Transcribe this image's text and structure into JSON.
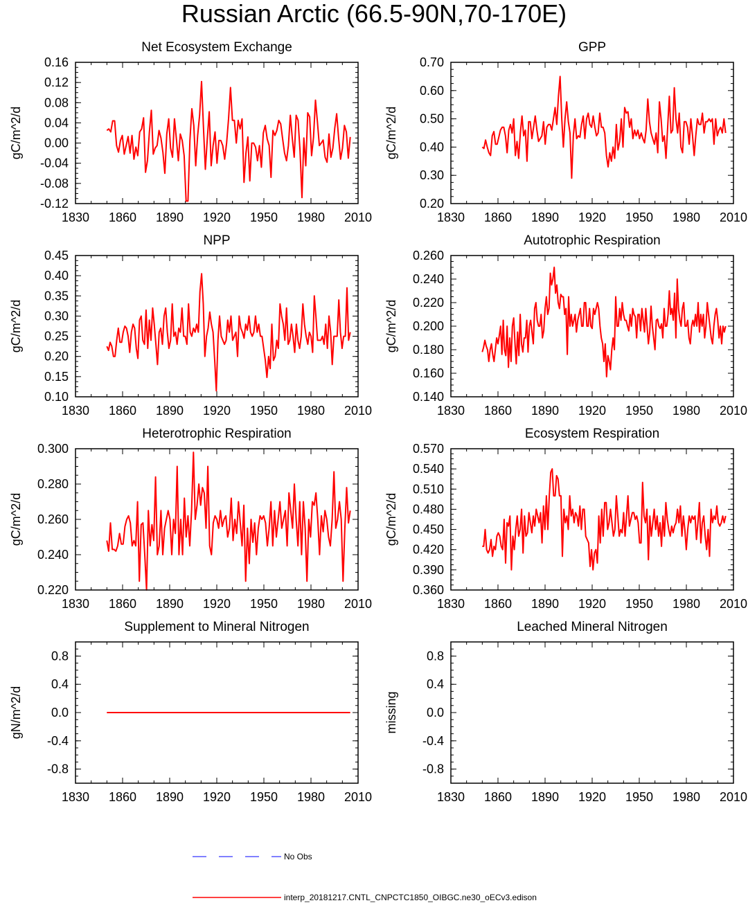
{
  "title": "Russian Arctic (66.5-90N,70-170E)",
  "legend": {
    "obs_label": "No Obs",
    "obs_color": "#0000ff",
    "model_label": "interp_20181217.CNTL_CNPCTC1850_OIBGC.ne30_oECv3.edison",
    "model_color": "#ff0000"
  },
  "chart_data": [
    {
      "type": "line",
      "title": "Net Ecosystem Exchange",
      "ylabel": "gC/m^2/d",
      "xlim": [
        1830,
        2010
      ],
      "xticks": [
        "1830",
        "1860",
        "1890",
        "1920",
        "1950",
        "1980",
        "2010"
      ],
      "ylim": [
        -0.12,
        0.16
      ],
      "yticks": [
        "-0.12",
        "-0.08",
        "-0.04",
        "0.00",
        "0.04",
        "0.08",
        "0.12",
        "0.16"
      ],
      "x_start": 1850,
      "values": [
        0.025,
        0.028,
        0.022,
        0.044,
        0.044,
        -0.005,
        -0.018,
        0.005,
        0.015,
        -0.022,
        -0.005,
        0.013,
        -0.02,
        0.015,
        -0.032,
        -0.008,
        -0.025,
        0.022,
        0.028,
        0.05,
        -0.058,
        -0.035,
        0.022,
        0.065,
        -0.022,
        -0.01,
        -0.005,
        0.025,
        0.01,
        -0.018,
        -0.06,
        0.018,
        0.048,
        -0.01,
        -0.028,
        0.048,
        0.008,
        -0.035,
        0.018,
        0.005,
        -0.025,
        -0.115,
        -0.115,
        0.005,
        0.068,
        0.035,
        -0.045,
        0.015,
        0.055,
        0.122,
        0.03,
        -0.052,
        0.008,
        0.062,
        -0.045,
        -0.005,
        0.022,
        -0.04,
        0.005,
        0.005,
        -0.005,
        -0.032,
        0.0,
        0.048,
        0.11,
        0.045,
        0.045,
        0.0,
        0.045,
        0.028,
        0.048,
        -0.078,
        -0.02,
        0.012,
        -0.075,
        0.0,
        0.0,
        -0.008,
        -0.035,
        -0.005,
        -0.048,
        0.02,
        0.035,
        0.008,
        -0.005,
        -0.068,
        0.025,
        0.015,
        0.025,
        0.045,
        0.038,
        0.008,
        -0.02,
        -0.035,
        -0.005,
        0.055,
        0.01,
        -0.028,
        0.055,
        0.045,
        -0.015,
        -0.108,
        0.01,
        -0.045,
        0.06,
        0.052,
        -0.025,
        0.012,
        0.085,
        0.042,
        -0.005,
        0.0,
        0.006,
        -0.028,
        -0.038,
        0.018,
        -0.028,
        -0.01,
        0.03,
        0.058,
        0.01,
        -0.032,
        -0.01,
        0.035,
        0.022,
        -0.03,
        0.012
      ]
    },
    {
      "type": "line",
      "title": "GPP",
      "ylabel": "gC/m^2/d",
      "xlim": [
        1830,
        2010
      ],
      "xticks": [
        "1830",
        "1860",
        "1890",
        "1920",
        "1950",
        "1980",
        "2010"
      ],
      "ylim": [
        0.2,
        0.7
      ],
      "yticks": [
        "0.20",
        "0.30",
        "0.40",
        "0.50",
        "0.60",
        "0.70"
      ],
      "x_start": 1850,
      "values": [
        0.4,
        0.395,
        0.425,
        0.4,
        0.38,
        0.37,
        0.44,
        0.455,
        0.41,
        0.41,
        0.435,
        0.46,
        0.47,
        0.47,
        0.44,
        0.38,
        0.46,
        0.48,
        0.45,
        0.5,
        0.37,
        0.42,
        0.36,
        0.45,
        0.51,
        0.44,
        0.46,
        0.35,
        0.49,
        0.49,
        0.43,
        0.47,
        0.51,
        0.46,
        0.42,
        0.43,
        0.44,
        0.49,
        0.41,
        0.47,
        0.48,
        0.48,
        0.46,
        0.5,
        0.54,
        0.48,
        0.58,
        0.65,
        0.5,
        0.4,
        0.5,
        0.56,
        0.49,
        0.45,
        0.29,
        0.44,
        0.5,
        0.43,
        0.44,
        0.435,
        0.48,
        0.51,
        0.43,
        0.5,
        0.52,
        0.48,
        0.47,
        0.51,
        0.47,
        0.44,
        0.45,
        0.52,
        0.47,
        0.47,
        0.45,
        0.37,
        0.33,
        0.38,
        0.35,
        0.4,
        0.36,
        0.48,
        0.39,
        0.42,
        0.5,
        0.4,
        0.54,
        0.52,
        0.525,
        0.47,
        0.5,
        0.43,
        0.46,
        0.44,
        0.46,
        0.43,
        0.45,
        0.43,
        0.415,
        0.46,
        0.57,
        0.49,
        0.45,
        0.43,
        0.41,
        0.45,
        0.38,
        0.56,
        0.5,
        0.42,
        0.44,
        0.36,
        0.47,
        0.58,
        0.45,
        0.46,
        0.61,
        0.5,
        0.45,
        0.52,
        0.4,
        0.38,
        0.49,
        0.49,
        0.47,
        0.41,
        0.5,
        0.44,
        0.37,
        0.44,
        0.5,
        0.48,
        0.48,
        0.52,
        0.45,
        0.49,
        0.49,
        0.5,
        0.49,
        0.5,
        0.41,
        0.5,
        0.44,
        0.46,
        0.47,
        0.45,
        0.5,
        0.45
      ]
    },
    {
      "type": "line",
      "title": "NPP",
      "ylabel": "gC/m^2/d",
      "xlim": [
        1830,
        2010
      ],
      "xticks": [
        "1830",
        "1860",
        "1890",
        "1920",
        "1950",
        "1980",
        "2010"
      ],
      "ylim": [
        0.1,
        0.45
      ],
      "yticks": [
        "0.10",
        "0.15",
        "0.20",
        "0.25",
        "0.30",
        "0.35",
        "0.40",
        "0.45"
      ],
      "x_start": 1850,
      "values": [
        0.225,
        0.215,
        0.235,
        0.225,
        0.2,
        0.2,
        0.24,
        0.27,
        0.235,
        0.235,
        0.26,
        0.275,
        0.27,
        0.25,
        0.21,
        0.26,
        0.28,
        0.27,
        0.22,
        0.195,
        0.29,
        0.3,
        0.24,
        0.23,
        0.315,
        0.22,
        0.29,
        0.24,
        0.32,
        0.28,
        0.23,
        0.18,
        0.26,
        0.27,
        0.23,
        0.3,
        0.32,
        0.26,
        0.22,
        0.24,
        0.33,
        0.25,
        0.26,
        0.23,
        0.27,
        0.26,
        0.32,
        0.25,
        0.25,
        0.23,
        0.33,
        0.26,
        0.25,
        0.27,
        0.26,
        0.28,
        0.26,
        0.36,
        0.405,
        0.33,
        0.2,
        0.25,
        0.27,
        0.31,
        0.28,
        0.26,
        0.19,
        0.115,
        0.24,
        0.3,
        0.25,
        0.24,
        0.23,
        0.24,
        0.29,
        0.26,
        0.3,
        0.24,
        0.25,
        0.26,
        0.2,
        0.3,
        0.27,
        0.26,
        0.245,
        0.28,
        0.265,
        0.3,
        0.26,
        0.25,
        0.26,
        0.3,
        0.26,
        0.28,
        0.25,
        0.25,
        0.22,
        0.19,
        0.148,
        0.2,
        0.17,
        0.28,
        0.19,
        0.2,
        0.24,
        0.22,
        0.33,
        0.3,
        0.28,
        0.24,
        0.32,
        0.23,
        0.24,
        0.28,
        0.25,
        0.21,
        0.28,
        0.24,
        0.22,
        0.25,
        0.33,
        0.28,
        0.25,
        0.23,
        0.26,
        0.25,
        0.21,
        0.35,
        0.3,
        0.24,
        0.24,
        0.24,
        0.25,
        0.23,
        0.28,
        0.22,
        0.3,
        0.26,
        0.18,
        0.25,
        0.25,
        0.25,
        0.34,
        0.26,
        0.22,
        0.25,
        0.25,
        0.37,
        0.24,
        0.26
      ]
    },
    {
      "type": "line",
      "title": "Autotrophic Respiration",
      "ylabel": "gC/m^2/d",
      "xlim": [
        1830,
        2010
      ],
      "xticks": [
        "1830",
        "1860",
        "1890",
        "1920",
        "1950",
        "1980",
        "2010"
      ],
      "ylim": [
        0.14,
        0.26
      ],
      "yticks": [
        "0.140",
        "0.160",
        "0.180",
        "0.200",
        "0.220",
        "0.240",
        "0.260"
      ],
      "x_start": 1850,
      "values": [
        0.178,
        0.182,
        0.188,
        0.183,
        0.18,
        0.17,
        0.18,
        0.185,
        0.176,
        0.17,
        0.18,
        0.19,
        0.185,
        0.192,
        0.2,
        0.176,
        0.205,
        0.18,
        0.175,
        0.2,
        0.165,
        0.19,
        0.17,
        0.2,
        0.207,
        0.185,
        0.168,
        0.195,
        0.175,
        0.21,
        0.185,
        0.178,
        0.19,
        0.19,
        0.205,
        0.178,
        0.2,
        0.205,
        0.195,
        0.185,
        0.215,
        0.22,
        0.205,
        0.2,
        0.2,
        0.21,
        0.19,
        0.196,
        0.215,
        0.225,
        0.21,
        0.215,
        0.245,
        0.235,
        0.24,
        0.25,
        0.228,
        0.235,
        0.22,
        0.215,
        0.227,
        0.225,
        0.225,
        0.21,
        0.215,
        0.176,
        0.225,
        0.2,
        0.21,
        0.2,
        0.205,
        0.21,
        0.195,
        0.205,
        0.21,
        0.215,
        0.2,
        0.2,
        0.22,
        0.22,
        0.2,
        0.2,
        0.215,
        0.2,
        0.198,
        0.215,
        0.21,
        0.215,
        0.22,
        0.215,
        0.2,
        0.19,
        0.185,
        0.17,
        0.185,
        0.157,
        0.175,
        0.17,
        0.163,
        0.18,
        0.19,
        0.18,
        0.225,
        0.2,
        0.2,
        0.215,
        0.205,
        0.22,
        0.21,
        0.205,
        0.205,
        0.2,
        0.196,
        0.21,
        0.2,
        0.215,
        0.21,
        0.208,
        0.19,
        0.21,
        0.21,
        0.196,
        0.215,
        0.205,
        0.195,
        0.215,
        0.2,
        0.185,
        0.195,
        0.217,
        0.2,
        0.19,
        0.18,
        0.205,
        0.206,
        0.2,
        0.198,
        0.202,
        0.19,
        0.215,
        0.2,
        0.2,
        0.21,
        0.23,
        0.21,
        0.215,
        0.205,
        0.228,
        0.19,
        0.24,
        0.215,
        0.205,
        0.2,
        0.215,
        0.22,
        0.2,
        0.2,
        0.205,
        0.19,
        0.185,
        0.2,
        0.205,
        0.2,
        0.21,
        0.2,
        0.22,
        0.195,
        0.21,
        0.2,
        0.21,
        0.19,
        0.2,
        0.22,
        0.21,
        0.2,
        0.19,
        0.185,
        0.2,
        0.21,
        0.215,
        0.205,
        0.19,
        0.2,
        0.185,
        0.2,
        0.195,
        0.2
      ]
    },
    {
      "type": "line",
      "title": "Heterotrophic Respiration",
      "ylabel": "gC/m^2/d",
      "xlim": [
        1830,
        2010
      ],
      "xticks": [
        "1830",
        "1860",
        "1890",
        "1920",
        "1950",
        "1980",
        "2010"
      ],
      "ylim": [
        0.22,
        0.3
      ],
      "yticks": [
        "0.220",
        "0.240",
        "0.260",
        "0.280",
        "0.300"
      ],
      "x_start": 1850,
      "values": [
        0.248,
        0.242,
        0.258,
        0.243,
        0.243,
        0.242,
        0.245,
        0.252,
        0.246,
        0.246,
        0.256,
        0.26,
        0.262,
        0.258,
        0.245,
        0.248,
        0.245,
        0.27,
        0.225,
        0.257,
        0.258,
        0.24,
        0.22,
        0.265,
        0.245,
        0.257,
        0.248,
        0.284,
        0.24,
        0.245,
        0.265,
        0.24,
        0.255,
        0.26,
        0.265,
        0.26,
        0.24,
        0.26,
        0.252,
        0.29,
        0.24,
        0.26,
        0.24,
        0.272,
        0.25,
        0.262,
        0.245,
        0.265,
        0.298,
        0.26,
        0.268,
        0.28,
        0.268,
        0.278,
        0.275,
        0.255,
        0.29,
        0.245,
        0.24,
        0.258,
        0.262,
        0.26,
        0.255,
        0.265,
        0.256,
        0.26,
        0.262,
        0.25,
        0.255,
        0.272,
        0.248,
        0.26,
        0.252,
        0.27,
        0.258,
        0.245,
        0.268,
        0.225,
        0.255,
        0.235,
        0.26,
        0.247,
        0.258,
        0.24,
        0.255,
        0.262,
        0.26,
        0.262,
        0.258,
        0.245,
        0.255,
        0.27,
        0.245,
        0.265,
        0.25,
        0.26,
        0.27,
        0.255,
        0.26,
        0.265,
        0.245,
        0.275,
        0.265,
        0.255,
        0.28,
        0.26,
        0.245,
        0.27,
        0.24,
        0.27,
        0.255,
        0.225,
        0.26,
        0.25,
        0.27,
        0.268,
        0.275,
        0.26,
        0.24,
        0.262,
        0.253,
        0.265,
        0.26,
        0.25,
        0.245,
        0.26,
        0.287,
        0.255,
        0.26,
        0.27,
        0.26,
        0.225,
        0.255,
        0.278,
        0.258,
        0.265
      ]
    },
    {
      "type": "line",
      "title": "Ecosystem Respiration",
      "ylabel": "gC/m^2/d",
      "xlim": [
        1830,
        2010
      ],
      "xticks": [
        "1830",
        "1860",
        "1890",
        "1920",
        "1950",
        "1980",
        "2010"
      ],
      "ylim": [
        0.36,
        0.57
      ],
      "yticks": [
        "0.360",
        "0.390",
        "0.420",
        "0.450",
        "0.480",
        "0.510",
        "0.540",
        "0.570"
      ],
      "x_start": 1850,
      "values": [
        0.425,
        0.425,
        0.45,
        0.42,
        0.415,
        0.42,
        0.435,
        0.41,
        0.425,
        0.42,
        0.44,
        0.445,
        0.44,
        0.425,
        0.42,
        0.465,
        0.4,
        0.46,
        0.455,
        0.47,
        0.39,
        0.44,
        0.42,
        0.45,
        0.47,
        0.44,
        0.45,
        0.48,
        0.415,
        0.47,
        0.44,
        0.445,
        0.475,
        0.46,
        0.445,
        0.47,
        0.455,
        0.48,
        0.47,
        0.46,
        0.475,
        0.43,
        0.485,
        0.45,
        0.5,
        0.45,
        0.5,
        0.535,
        0.54,
        0.5,
        0.5,
        0.53,
        0.525,
        0.5,
        0.5,
        0.41,
        0.48,
        0.46,
        0.47,
        0.45,
        0.5,
        0.47,
        0.48,
        0.46,
        0.475,
        0.47,
        0.455,
        0.485,
        0.45,
        0.48,
        0.48,
        0.44,
        0.435,
        0.43,
        0.395,
        0.42,
        0.39,
        0.415,
        0.42,
        0.4,
        0.47,
        0.43,
        0.48,
        0.44,
        0.49,
        0.49,
        0.45,
        0.46,
        0.48,
        0.46,
        0.44,
        0.45,
        0.5,
        0.47,
        0.44,
        0.45,
        0.445,
        0.475,
        0.44,
        0.47,
        0.5,
        0.455,
        0.465,
        0.475,
        0.475,
        0.465,
        0.47,
        0.46,
        0.43,
        0.43,
        0.52,
        0.47,
        0.46,
        0.48,
        0.405,
        0.47,
        0.44,
        0.46,
        0.48,
        0.45,
        0.47,
        0.44,
        0.46,
        0.425,
        0.47,
        0.44,
        0.49,
        0.465,
        0.45,
        0.44,
        0.455,
        0.445,
        0.455,
        0.46,
        0.48,
        0.46,
        0.485,
        0.44,
        0.47,
        0.45,
        0.42,
        0.45,
        0.47,
        0.46,
        0.47,
        0.465,
        0.47,
        0.435,
        0.46,
        0.49,
        0.43,
        0.46,
        0.47,
        0.44,
        0.42,
        0.45,
        0.41,
        0.48,
        0.46,
        0.47,
        0.465,
        0.485,
        0.46,
        0.455,
        0.46,
        0.47,
        0.46,
        0.47
      ]
    },
    {
      "type": "line",
      "title": "Supplement to Mineral Nitrogen",
      "ylabel": "gN/m^2/d",
      "xlim": [
        1830,
        2010
      ],
      "xticks": [
        "1830",
        "1860",
        "1890",
        "1920",
        "1950",
        "1980",
        "2010"
      ],
      "ylim": [
        -1.0,
        1.0
      ],
      "yticks": [
        "-0.8",
        "-0.4",
        "0.0",
        "0.4",
        "0.8"
      ],
      "x_start": 1850,
      "x_end": 2005,
      "values": [
        0,
        0
      ]
    },
    {
      "type": "line",
      "title": "Leached Mineral Nitrogen",
      "ylabel": "missing",
      "xlim": [
        1830,
        2010
      ],
      "xticks": [
        "1830",
        "1860",
        "1890",
        "1920",
        "1950",
        "1980",
        "2010"
      ],
      "ylim": [
        -1.0,
        1.0
      ],
      "yticks": [
        "-0.8",
        "-0.4",
        "0.0",
        "0.4",
        "0.8"
      ],
      "x_start": 1850,
      "values": []
    }
  ]
}
